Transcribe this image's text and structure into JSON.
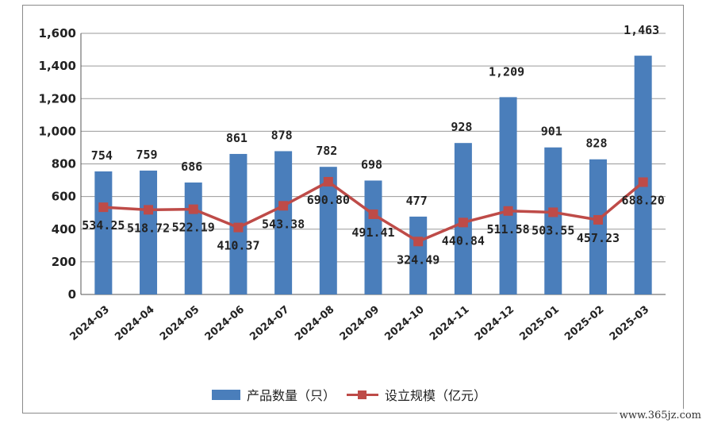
{
  "chart_data": {
    "type": "bar",
    "categories": [
      "2024-03",
      "2024-04",
      "2024-05",
      "2024-06",
      "2024-07",
      "2024-08",
      "2024-09",
      "2024-10",
      "2024-11",
      "2024-12",
      "2025-01",
      "2025-02",
      "2025-03"
    ],
    "series": [
      {
        "name": "产品数量（只）",
        "type": "bar",
        "values": [
          754,
          759,
          686,
          861,
          878,
          782,
          698,
          477,
          928,
          1209,
          901,
          828,
          1463
        ],
        "labels": [
          "754",
          "759",
          "686",
          "861",
          "878",
          "782",
          "698",
          "477",
          "928",
          "1,209",
          "901",
          "828",
          "1,463"
        ],
        "color": "#4a7ebb"
      },
      {
        "name": "设立规模（亿元）",
        "type": "line",
        "values": [
          534.25,
          518.72,
          522.19,
          410.37,
          543.38,
          690.8,
          491.41,
          324.49,
          440.84,
          511.58,
          503.55,
          457.23,
          688.2
        ],
        "labels": [
          "534.25",
          "518.72",
          "522.19",
          "410.37",
          "543.38",
          "690.80",
          "491.41",
          "324.49",
          "440.84",
          "511.58",
          "503.55",
          "457.23",
          "688.20"
        ],
        "color": "#be4b48"
      }
    ],
    "ylim": [
      0,
      1600
    ],
    "yticks": [
      0,
      200,
      400,
      600,
      800,
      1000,
      1200,
      1400,
      1600
    ],
    "ytick_labels": [
      "0",
      "200",
      "400",
      "600",
      "800",
      "1,000",
      "1,200",
      "1,400",
      "1,600"
    ],
    "grid": true,
    "legend_position": "bottom"
  },
  "legend": {
    "bar_label": "产品数量（只）",
    "line_label": "设立规模（亿元）"
  },
  "watermark": "www.365jz.com"
}
